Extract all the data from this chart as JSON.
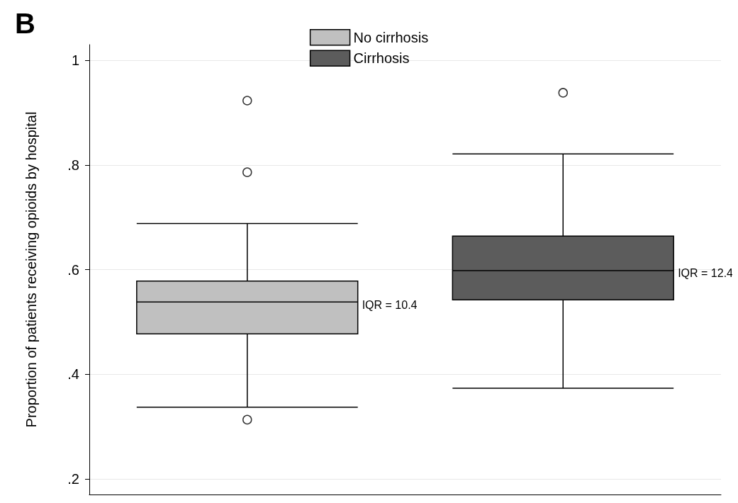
{
  "chart_data": {
    "type": "box",
    "title": "B",
    "ylabel": "Proportion of patients receiving opioids by hospital",
    "categories": [
      null,
      null
    ],
    "series": [
      {
        "name": "No cirrhosis",
        "color": "#c0c0c0",
        "boxes": [
          {
            "low": 0.337,
            "q1": 0.477,
            "median": 0.538,
            "q3": 0.578,
            "high": 0.688,
            "outliers": [
              0.923,
              0.786,
              0.313
            ]
          },
          null
        ]
      },
      {
        "name": "Cirrhosis",
        "color": "#5c5c5c",
        "boxes": [
          null,
          {
            "low": 0.373,
            "q1": 0.542,
            "median": 0.598,
            "q3": 0.664,
            "high": 0.821,
            "outliers": [
              0.938
            ]
          }
        ]
      }
    ],
    "annotations": [
      "IQR = 10.4",
      "IQR = 12.4"
    ],
    "ylim": [
      0.17,
      1.03
    ],
    "yticks": [
      {
        "value": 0.2,
        "label": ".2"
      },
      {
        "value": 0.4,
        "label": ".4"
      },
      {
        "value": 0.6,
        "label": ".6"
      },
      {
        "value": 0.8,
        "label": ".8"
      },
      1
    ],
    "grid": "y",
    "legend": "top",
    "tick_labels": "y"
  }
}
